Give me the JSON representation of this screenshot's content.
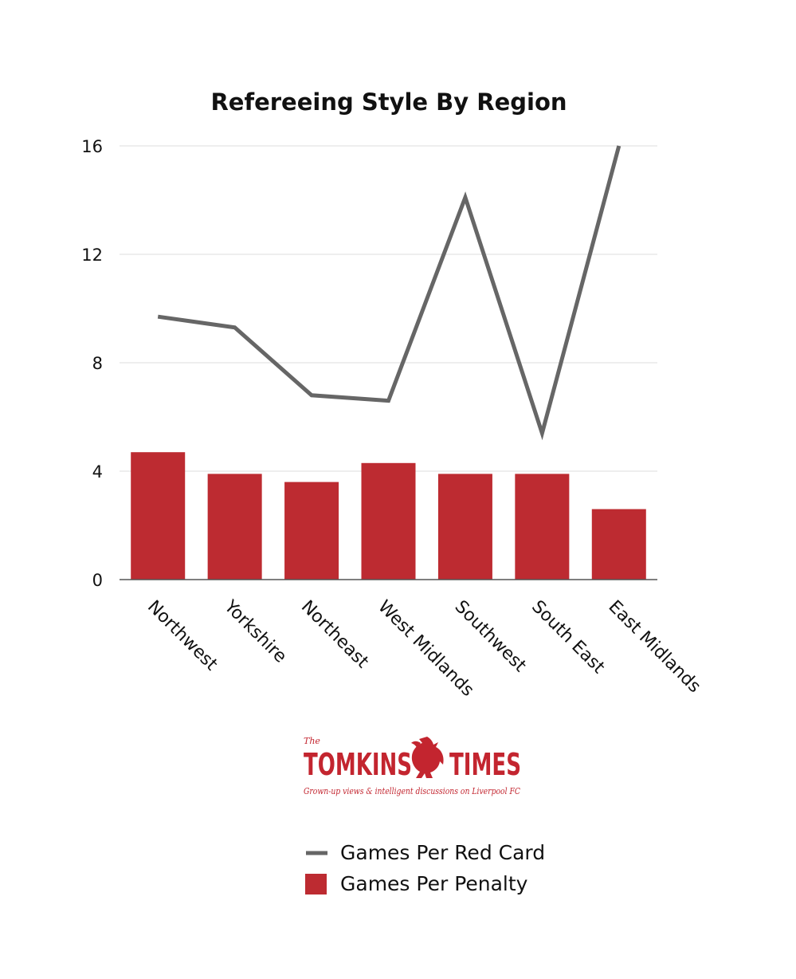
{
  "chart_data": {
    "type": "bar",
    "title": "Refereeing Style By Region",
    "categories": [
      "Northwest",
      "Yorkshire",
      "Northeast",
      "West Midlands",
      "Southwest",
      "South East",
      "East Midlands"
    ],
    "series": [
      {
        "name": "Games Per Penalty",
        "type": "bar",
        "color": "#bd2b31",
        "values": [
          4.7,
          3.9,
          3.6,
          4.3,
          3.9,
          3.9,
          2.6
        ]
      },
      {
        "name": "Games Per Red Card",
        "type": "line",
        "color": "#666666",
        "values": [
          9.7,
          9.3,
          6.8,
          6.6,
          14.1,
          5.4,
          16.0
        ]
      }
    ],
    "yticks": [
      0,
      4,
      8,
      12,
      16
    ],
    "ylim": [
      0,
      16
    ],
    "grid": true,
    "legend_position": "bottom"
  },
  "logo": {
    "the": "The",
    "name_left": "TOMKINS",
    "name_right": "TIMES",
    "tagline": "Grown-up views & intelligent discussions on Liverpool FC",
    "color": "#c3252f"
  },
  "legend": {
    "items": [
      {
        "label": "Games Per Red Card",
        "marker": "line",
        "color": "#666666"
      },
      {
        "label": "Games Per Penalty",
        "marker": "box",
        "color": "#bd2b31"
      }
    ]
  }
}
